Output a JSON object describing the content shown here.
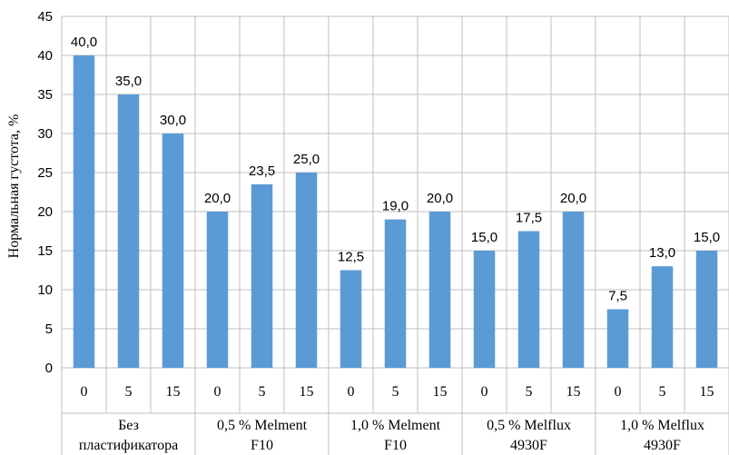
{
  "chart_data": {
    "type": "bar",
    "ylabel": "Нормальная густота, %",
    "ylim": [
      0,
      45
    ],
    "yticks": [
      "0",
      "5",
      "10",
      "15",
      "20",
      "25",
      "30",
      "35",
      "40",
      "45"
    ],
    "grid": true,
    "bar_color": "#5b9bd5",
    "groups": [
      {
        "label_lines": [
          "Без",
          "пластификатора"
        ],
        "categories": [
          "0",
          "5",
          "15"
        ],
        "values": [
          40.0,
          35.0,
          30.0
        ],
        "data_labels": [
          "40,0",
          "35,0",
          "30,0"
        ]
      },
      {
        "label_lines": [
          "0,5 % Melment",
          "F10"
        ],
        "categories": [
          "0",
          "5",
          "15"
        ],
        "values": [
          20.0,
          23.5,
          25.0
        ],
        "data_labels": [
          "20,0",
          "23,5",
          "25,0"
        ]
      },
      {
        "label_lines": [
          "1,0 % Melment",
          "F10"
        ],
        "categories": [
          "0",
          "5",
          "15"
        ],
        "values": [
          12.5,
          19.0,
          20.0
        ],
        "data_labels": [
          "12,5",
          "19,0",
          "20,0"
        ]
      },
      {
        "label_lines": [
          "0,5 % Melflux",
          "4930F"
        ],
        "categories": [
          "0",
          "5",
          "15"
        ],
        "values": [
          15.0,
          17.5,
          20.0
        ],
        "data_labels": [
          "15,0",
          "17,5",
          "20,0"
        ]
      },
      {
        "label_lines": [
          "1,0 % Melflux",
          "4930F"
        ],
        "categories": [
          "0",
          "5",
          "15"
        ],
        "values": [
          7.5,
          13.0,
          15.0
        ],
        "data_labels": [
          "7,5",
          "13,0",
          "15,0"
        ]
      }
    ]
  }
}
